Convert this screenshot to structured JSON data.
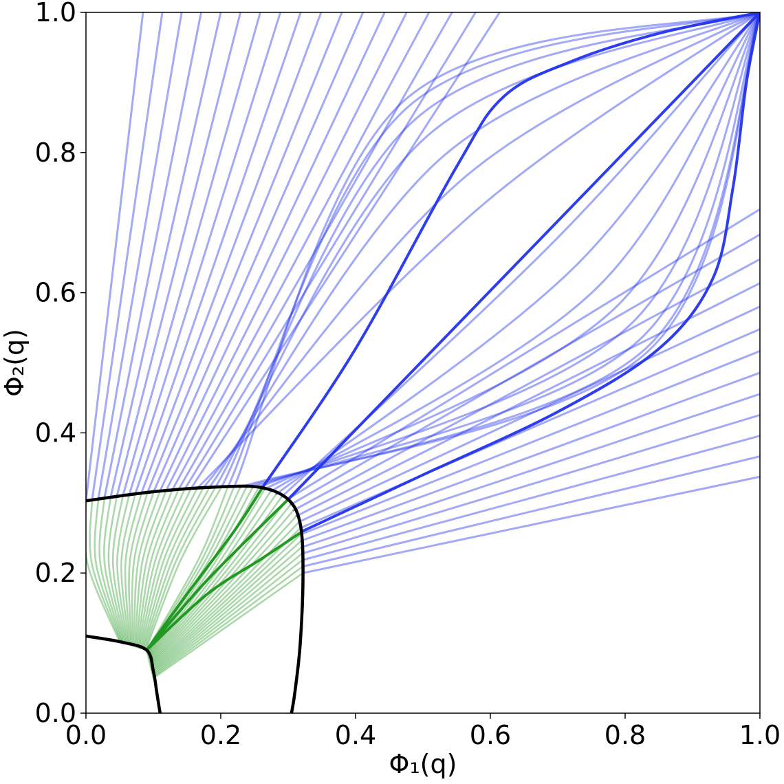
{
  "chart_data": {
    "type": "line",
    "title": "",
    "xlabel": "Φ₁(q)",
    "ylabel": "Φ₂(q)",
    "xlim": [
      0,
      1
    ],
    "ylim": [
      0,
      1
    ],
    "xticks": [
      "0.0",
      "0.2",
      "0.4",
      "0.6",
      "0.8",
      "1.0"
    ],
    "yticks": [
      "0.0",
      "0.2",
      "0.4",
      "0.6",
      "0.8",
      "1.0"
    ],
    "grid": false,
    "legend": "none",
    "colors": {
      "outer": "#2233ee",
      "inner": "#229922",
      "boundary": "#000000"
    },
    "boundaries": [
      {
        "name": "outer",
        "points": [
          [
            0.0,
            0.303
          ],
          [
            0.1,
            0.316
          ],
          [
            0.2,
            0.323
          ],
          [
            0.26,
            0.322
          ],
          [
            0.3,
            0.305
          ],
          [
            0.318,
            0.27
          ],
          [
            0.322,
            0.2
          ],
          [
            0.318,
            0.1
          ],
          [
            0.31,
            0.03
          ],
          [
            0.305,
            0.0
          ]
        ]
      },
      {
        "name": "inner",
        "points": [
          [
            0.0,
            0.11
          ],
          [
            0.05,
            0.102
          ],
          [
            0.09,
            0.09
          ],
          [
            0.1,
            0.06
          ],
          [
            0.105,
            0.03
          ],
          [
            0.11,
            0.0
          ]
        ]
      }
    ],
    "highlighted_curves": [
      {
        "inner": [
          [
            0.09,
            0.09
          ],
          [
            0.15,
            0.17
          ],
          [
            0.22,
            0.26
          ],
          [
            0.262,
            0.322
          ]
        ],
        "outer": [
          [
            0.262,
            0.322
          ],
          [
            0.4,
            0.52
          ],
          [
            0.55,
            0.78
          ],
          [
            0.62,
            0.88
          ],
          [
            0.72,
            0.93
          ],
          [
            0.85,
            0.97
          ],
          [
            1.0,
            1.0
          ]
        ]
      },
      {
        "inner": [
          [
            0.09,
            0.09
          ],
          [
            0.18,
            0.19
          ],
          [
            0.3,
            0.305
          ]
        ],
        "outer": [
          [
            0.3,
            0.305
          ],
          [
            1.0,
            1.0
          ]
        ]
      },
      {
        "inner": [
          [
            0.09,
            0.09
          ],
          [
            0.18,
            0.17
          ],
          [
            0.26,
            0.22
          ],
          [
            0.322,
            0.26
          ]
        ],
        "outer": [
          [
            0.322,
            0.26
          ],
          [
            0.5,
            0.34
          ],
          [
            0.7,
            0.43
          ],
          [
            0.85,
            0.52
          ],
          [
            0.93,
            0.62
          ],
          [
            0.96,
            0.75
          ],
          [
            0.98,
            0.9
          ],
          [
            1.0,
            1.0
          ]
        ]
      }
    ]
  }
}
